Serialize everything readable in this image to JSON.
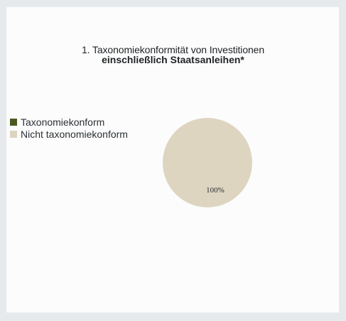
{
  "chart_data": {
    "type": "pie",
    "title": "1. Taxonomiekonformität von Investitionen",
    "subtitle": "einschließlich Staatsanleihen*",
    "legend_placement": "left",
    "categories": [
      "Taxonomiekonform",
      "Nicht taxonomiekonform"
    ],
    "values": [
      0,
      100
    ],
    "data_labels": [
      "",
      "100%"
    ],
    "colors": [
      "#4a5a1f",
      "#ddd5c0"
    ]
  }
}
